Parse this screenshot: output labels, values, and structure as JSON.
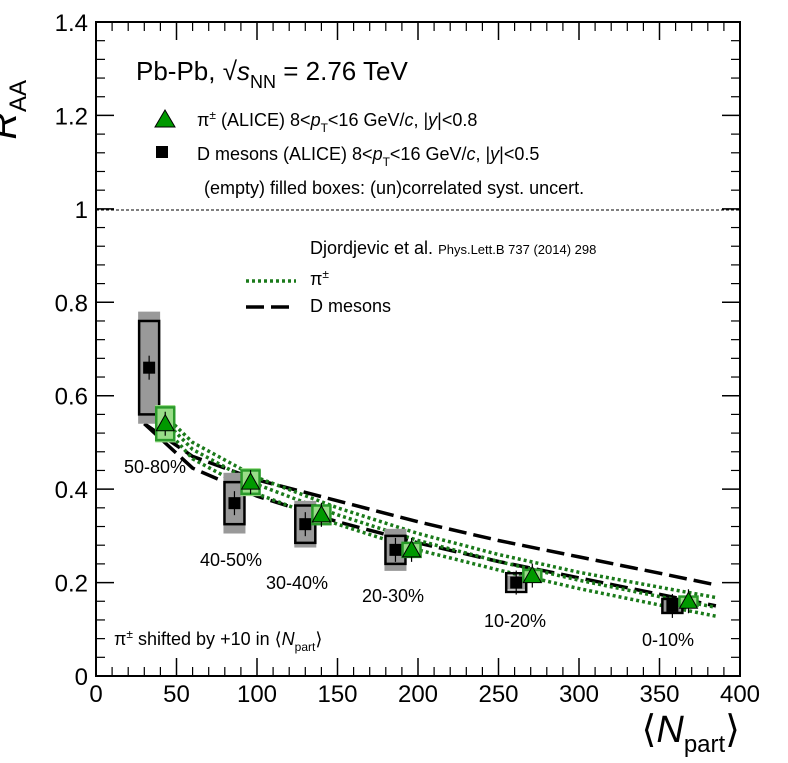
{
  "chart_data": {
    "type": "scatter",
    "xlim": [
      0,
      400
    ],
    "ylim": [
      0,
      1.4
    ],
    "x_ticks": [
      "0",
      "50",
      "100",
      "150",
      "200",
      "250",
      "300",
      "350",
      "400"
    ],
    "y_ticks": [
      "0",
      "0.2",
      "0.4",
      "0.6",
      "0.8",
      "1",
      "1.2",
      "1.4"
    ],
    "y_axis_label": {
      "main": "R",
      "sub": "AA"
    },
    "x_axis_label": {
      "open": "⟨",
      "main": "N",
      "sub": "part",
      "close": "⟩"
    },
    "title": {
      "pre": "Pb-Pb, ",
      "s": "s",
      "sub": "NN",
      "post": " = 2.76 TeV"
    },
    "reference_line": 1.0,
    "legend_data": {
      "pi": {
        "pre": "π",
        "sup": "±",
        "mid": " (ALICE) 8<",
        "p": "p",
        "psub": "T",
        "post": "<16 GeV/",
        "c": "c",
        "sep": ", |",
        "y": "y",
        "cut": "|<0.8"
      },
      "d": {
        "pre": "D mesons (ALICE) 8<",
        "p": "p",
        "psub": "T",
        "post": "<16 GeV/",
        "c": "c",
        "sep": ", |",
        "y": "y",
        "cut": "|<0.5"
      },
      "note": "(empty) filled boxes: (un)correlated syst. uncert."
    },
    "legend_models": {
      "author": "Djordjevic et al. ",
      "ref": "Phys.Lett.B 737 (2014) 298",
      "pi_pre": "π",
      "pi_sup": "±",
      "d": "D mesons"
    },
    "shift_note": {
      "pre": "π",
      "sup": "±",
      "mid": " shifted by +10 in ⟨",
      "n": "N",
      "sub": "part",
      "close": "⟩"
    },
    "centrality_labels": [
      "50-80%",
      "40-50%",
      "30-40%",
      "20-30%",
      "10-20%",
      "0-10%"
    ],
    "series": [
      {
        "name": "D mesons (ALICE)",
        "color": "#000000",
        "box_fill": "#999999",
        "x": [
          33,
          86,
          130,
          186,
          261,
          358
        ],
        "y": [
          0.66,
          0.37,
          0.325,
          0.27,
          0.2,
          0.15
        ],
        "uncorr": [
          0.1,
          0.045,
          0.04,
          0.03,
          0.02,
          0.015
        ],
        "corr": [
          0.12,
          0.065,
          0.05,
          0.045,
          0.015,
          0.015
        ]
      },
      {
        "name": "π± (ALICE)",
        "color": "#009900",
        "box_fill": "#99dd88",
        "x": [
          43,
          96,
          140,
          196,
          271,
          368
        ],
        "y": [
          0.54,
          0.415,
          0.345,
          0.27,
          0.215,
          0.16
        ],
        "uncorr": [
          0.035,
          0.025,
          0.02,
          0.015,
          0.012,
          0.01
        ],
        "corr": [
          0.04,
          0.03,
          0.02,
          0.015,
          0.012,
          0.01
        ]
      }
    ],
    "models": [
      {
        "name": "D mesons band upper",
        "style": "dash",
        "color": "#000000",
        "x": [
          30,
          60,
          100,
          150,
          200,
          250,
          300,
          350,
          385
        ],
        "y": [
          0.54,
          0.47,
          0.42,
          0.375,
          0.33,
          0.29,
          0.255,
          0.22,
          0.195
        ]
      },
      {
        "name": "D mesons band lower",
        "style": "dash",
        "color": "#000000",
        "x": [
          30,
          60,
          100,
          150,
          200,
          250,
          300,
          350,
          385
        ],
        "y": [
          0.54,
          0.445,
          0.385,
          0.33,
          0.285,
          0.245,
          0.21,
          0.175,
          0.15
        ]
      },
      {
        "name": "π± band upper",
        "style": "dot",
        "color": "#1a7a1a",
        "x": [
          30,
          60,
          100,
          150,
          200,
          250,
          300,
          350,
          385
        ],
        "y": [
          0.6,
          0.5,
          0.425,
          0.36,
          0.305,
          0.26,
          0.222,
          0.19,
          0.168
        ]
      },
      {
        "name": "π± band middle",
        "style": "dot",
        "color": "#1a7a1a",
        "x": [
          30,
          60,
          100,
          150,
          200,
          250,
          300,
          350,
          385
        ],
        "y": [
          0.59,
          0.485,
          0.41,
          0.345,
          0.29,
          0.245,
          0.205,
          0.17,
          0.147
        ]
      },
      {
        "name": "π± band lower",
        "style": "dot",
        "color": "#1a7a1a",
        "x": [
          30,
          60,
          100,
          150,
          200,
          250,
          300,
          350,
          385
        ],
        "y": [
          0.58,
          0.465,
          0.39,
          0.325,
          0.27,
          0.227,
          0.187,
          0.152,
          0.128
        ]
      }
    ]
  }
}
